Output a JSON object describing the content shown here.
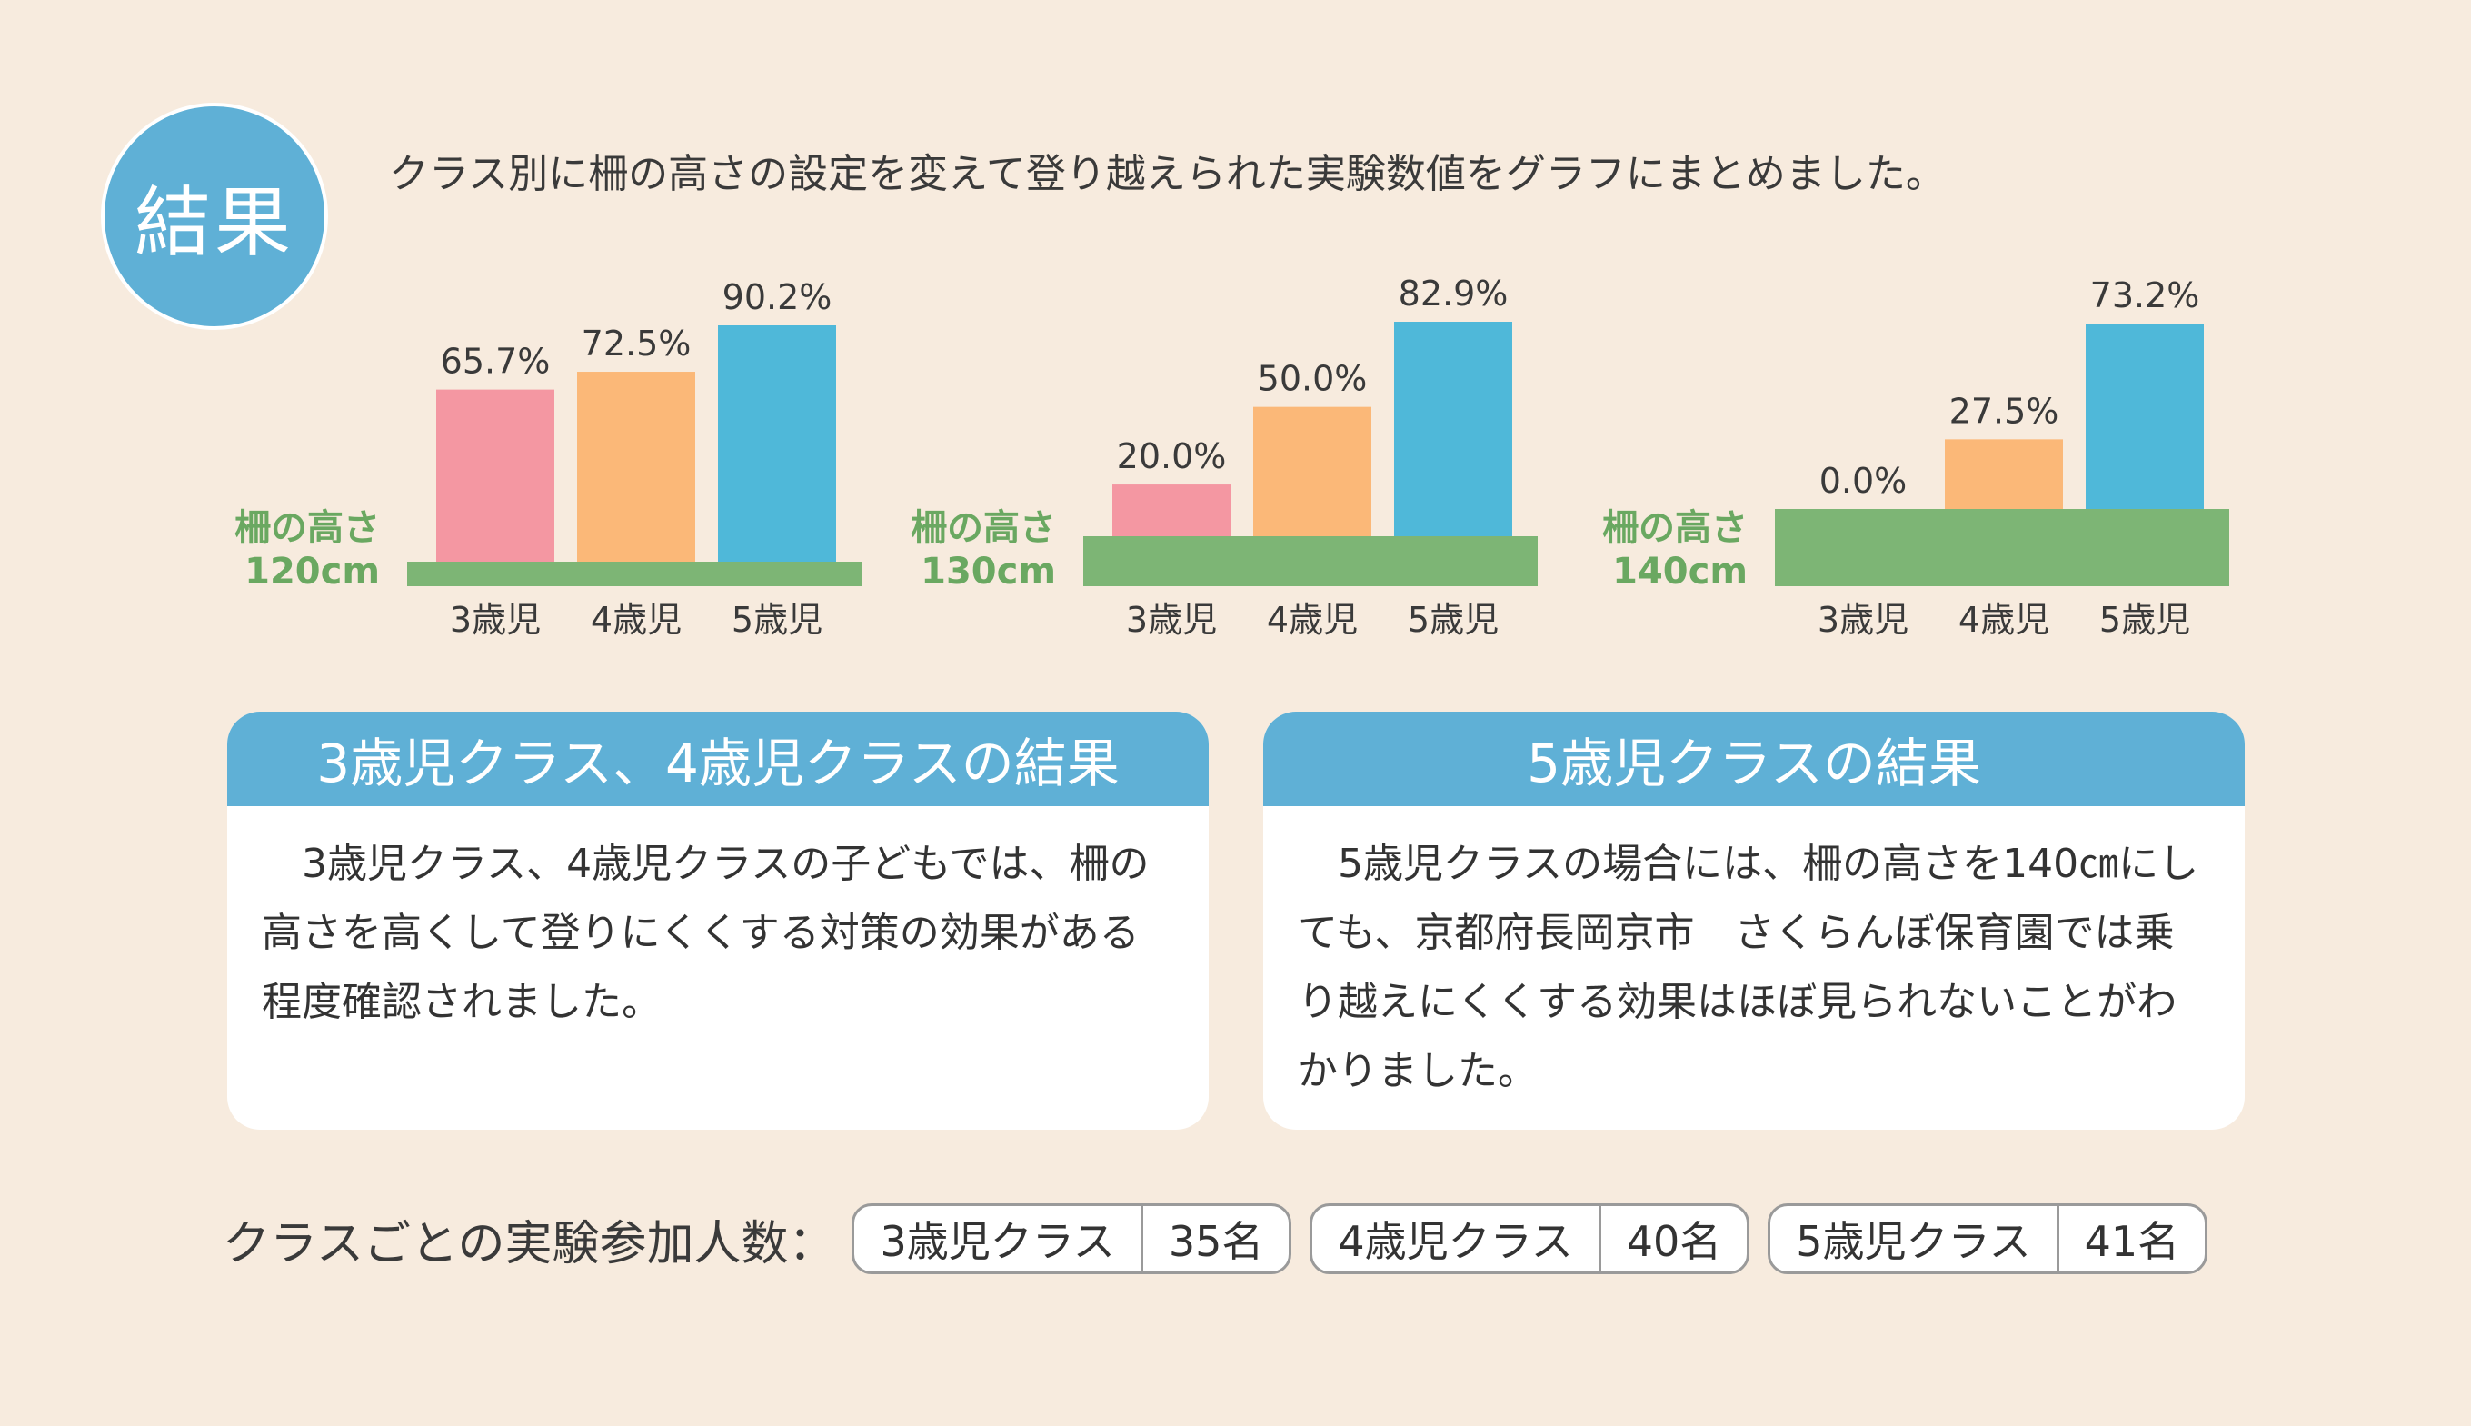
{
  "badge": "結果",
  "intro": "クラス別に柵の高さの設定を変えて登り越えられた実験数値をグラフにまとめました。",
  "chart_data": [
    {
      "type": "bar",
      "height_label_line1": "柵の高さ",
      "height_label_line2": "120cm",
      "categories": [
        "3歳児",
        "4歳児",
        "5歳児"
      ],
      "values": [
        65.7,
        72.5,
        90.2
      ],
      "value_labels": [
        "65.7%",
        "72.5%",
        "90.2%"
      ],
      "ylim": [
        0,
        100
      ]
    },
    {
      "type": "bar",
      "height_label_line1": "柵の高さ",
      "height_label_line2": "130cm",
      "categories": [
        "3歳児",
        "4歳児",
        "5歳児"
      ],
      "values": [
        20.0,
        50.0,
        82.9
      ],
      "value_labels": [
        "20.0%",
        "50.0%",
        "82.9%"
      ],
      "ylim": [
        0,
        100
      ]
    },
    {
      "type": "bar",
      "height_label_line1": "柵の高さ",
      "height_label_line2": "140cm",
      "categories": [
        "3歳児",
        "4歳児",
        "5歳児"
      ],
      "values": [
        0.0,
        27.5,
        73.2
      ],
      "value_labels": [
        "0.0%",
        "27.5%",
        "73.2%"
      ],
      "ylim": [
        0,
        100
      ]
    }
  ],
  "colors": {
    "age3": "#f497a2",
    "age4": "#fbb878",
    "age5": "#4fb8d9",
    "fence": "#7db575",
    "fence_label": "#6aa861",
    "accent": "#5fb0d6",
    "background": "#f7ebde"
  },
  "panels": {
    "left": {
      "title": "3歳児クラス、4歳児クラスの結果",
      "body": "3歳児クラス、4歳児クラスの子どもでは、柵の高さを高くして登りにくくする対策の効果がある程度確認されました。"
    },
    "right": {
      "title": "5歳児クラスの結果",
      "body": "5歳児クラスの場合には、柵の高さを140㎝にしても、京都府長岡京市　さくらんぼ保育園では乗り越えにくくする効果はほぼ見られないことがわかりました。"
    }
  },
  "counts": {
    "label": "クラスごとの実験参加人数：",
    "items": [
      {
        "cls": "3歳児クラス",
        "num": "35名"
      },
      {
        "cls": "4歳児クラス",
        "num": "40名"
      },
      {
        "cls": "5歳児クラス",
        "num": "41名"
      }
    ]
  }
}
